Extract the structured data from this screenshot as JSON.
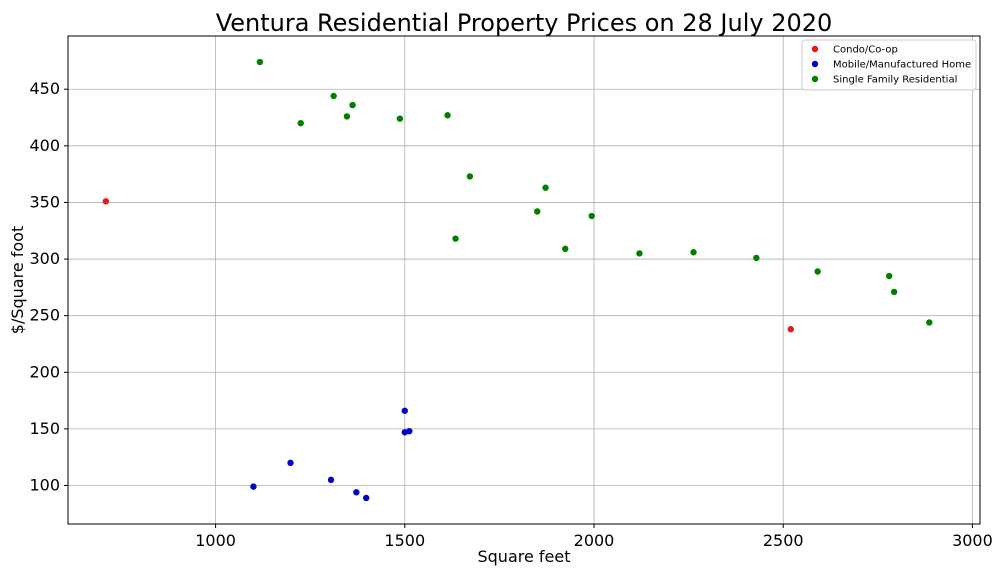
{
  "chart_data": {
    "type": "scatter",
    "title": "Ventura Residential Property Prices on 28 July 2020",
    "xlabel": "Square feet",
    "ylabel": "$/Square foot",
    "xlim": [
      610,
      3020
    ],
    "ylim": [
      66,
      497
    ],
    "xticks": [
      1000,
      1500,
      2000,
      2500,
      3000
    ],
    "yticks": [
      100,
      150,
      200,
      250,
      300,
      350,
      400,
      450
    ],
    "grid": true,
    "legend_position": "top-right",
    "series": [
      {
        "name": "Condo/Co-op",
        "color": "#e31a1c",
        "points": [
          [
            710,
            351
          ],
          [
            2520,
            238
          ]
        ]
      },
      {
        "name": "Mobile/Manufactured Home",
        "color": "#0000cd",
        "points": [
          [
            1100,
            99
          ],
          [
            1198,
            120
          ],
          [
            1305,
            105
          ],
          [
            1372,
            94
          ],
          [
            1398,
            89
          ],
          [
            1500,
            166
          ],
          [
            1500,
            147
          ],
          [
            1512,
            148
          ]
        ]
      },
      {
        "name": "Single Family Residential",
        "color": "#007f00",
        "points": [
          [
            1117,
            474
          ],
          [
            1225,
            420
          ],
          [
            1312,
            444
          ],
          [
            1347,
            426
          ],
          [
            1362,
            436
          ],
          [
            1487,
            424
          ],
          [
            1613,
            427
          ],
          [
            1634,
            318
          ],
          [
            1672,
            373
          ],
          [
            1850,
            342
          ],
          [
            1872,
            363
          ],
          [
            1924,
            309
          ],
          [
            1994,
            338
          ],
          [
            2120,
            305
          ],
          [
            2263,
            306
          ],
          [
            2429,
            301
          ],
          [
            2591,
            289
          ],
          [
            2780,
            285
          ],
          [
            2793,
            271
          ],
          [
            2886,
            244
          ]
        ]
      }
    ]
  }
}
